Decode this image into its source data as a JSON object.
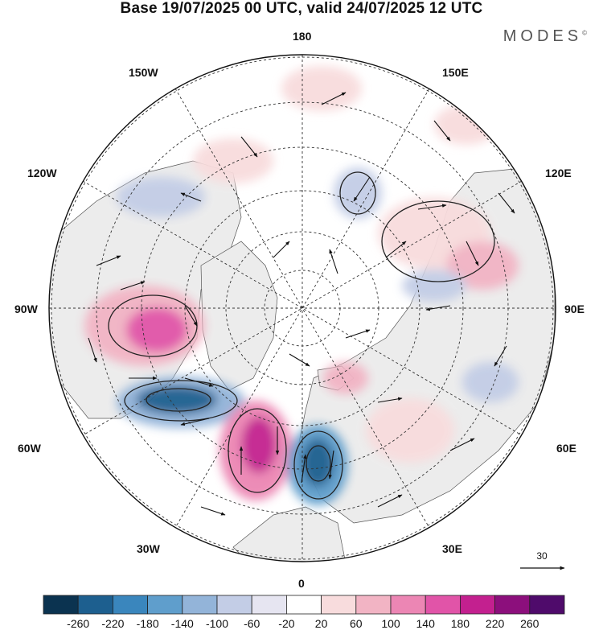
{
  "title": "Base 19/07/2025 00 UTC, valid 24/07/2025 12 UTC",
  "brand": "MODES",
  "brand_mark": "©",
  "lon_labels": {
    "lon_180": "180",
    "lon_150w": "150W",
    "lon_150e": "150E",
    "lon_120w": "120W",
    "lon_120e": "120E",
    "lon_90w": "90W",
    "lon_90e": "90E",
    "lon_60w": "60W",
    "lon_60e": "60E",
    "lon_30w": "30W",
    "lon_30e": "30E",
    "lon_0": "0"
  },
  "reference_vector": {
    "label": "30"
  },
  "colorbar": {
    "ticks": [
      "-260",
      "-220",
      "-180",
      "-140",
      "-100",
      "-60",
      "-20",
      "20",
      "60",
      "100",
      "140",
      "180",
      "220",
      "260"
    ],
    "colors": [
      "#0b3350",
      "#1d5f8f",
      "#3a86bd",
      "#5f9ecc",
      "#93b4d9",
      "#c3cde6",
      "#e6e5f1",
      "#ffffff",
      "#f8dcdd",
      "#f2b4c4",
      "#ec86b4",
      "#e154a8",
      "#c3208f",
      "#8c0f7c",
      "#4f0b6b"
    ]
  },
  "colors": {
    "land": "#ececec",
    "ocean": "#ffffff",
    "contour": "#222222",
    "grid": "#333333"
  }
}
